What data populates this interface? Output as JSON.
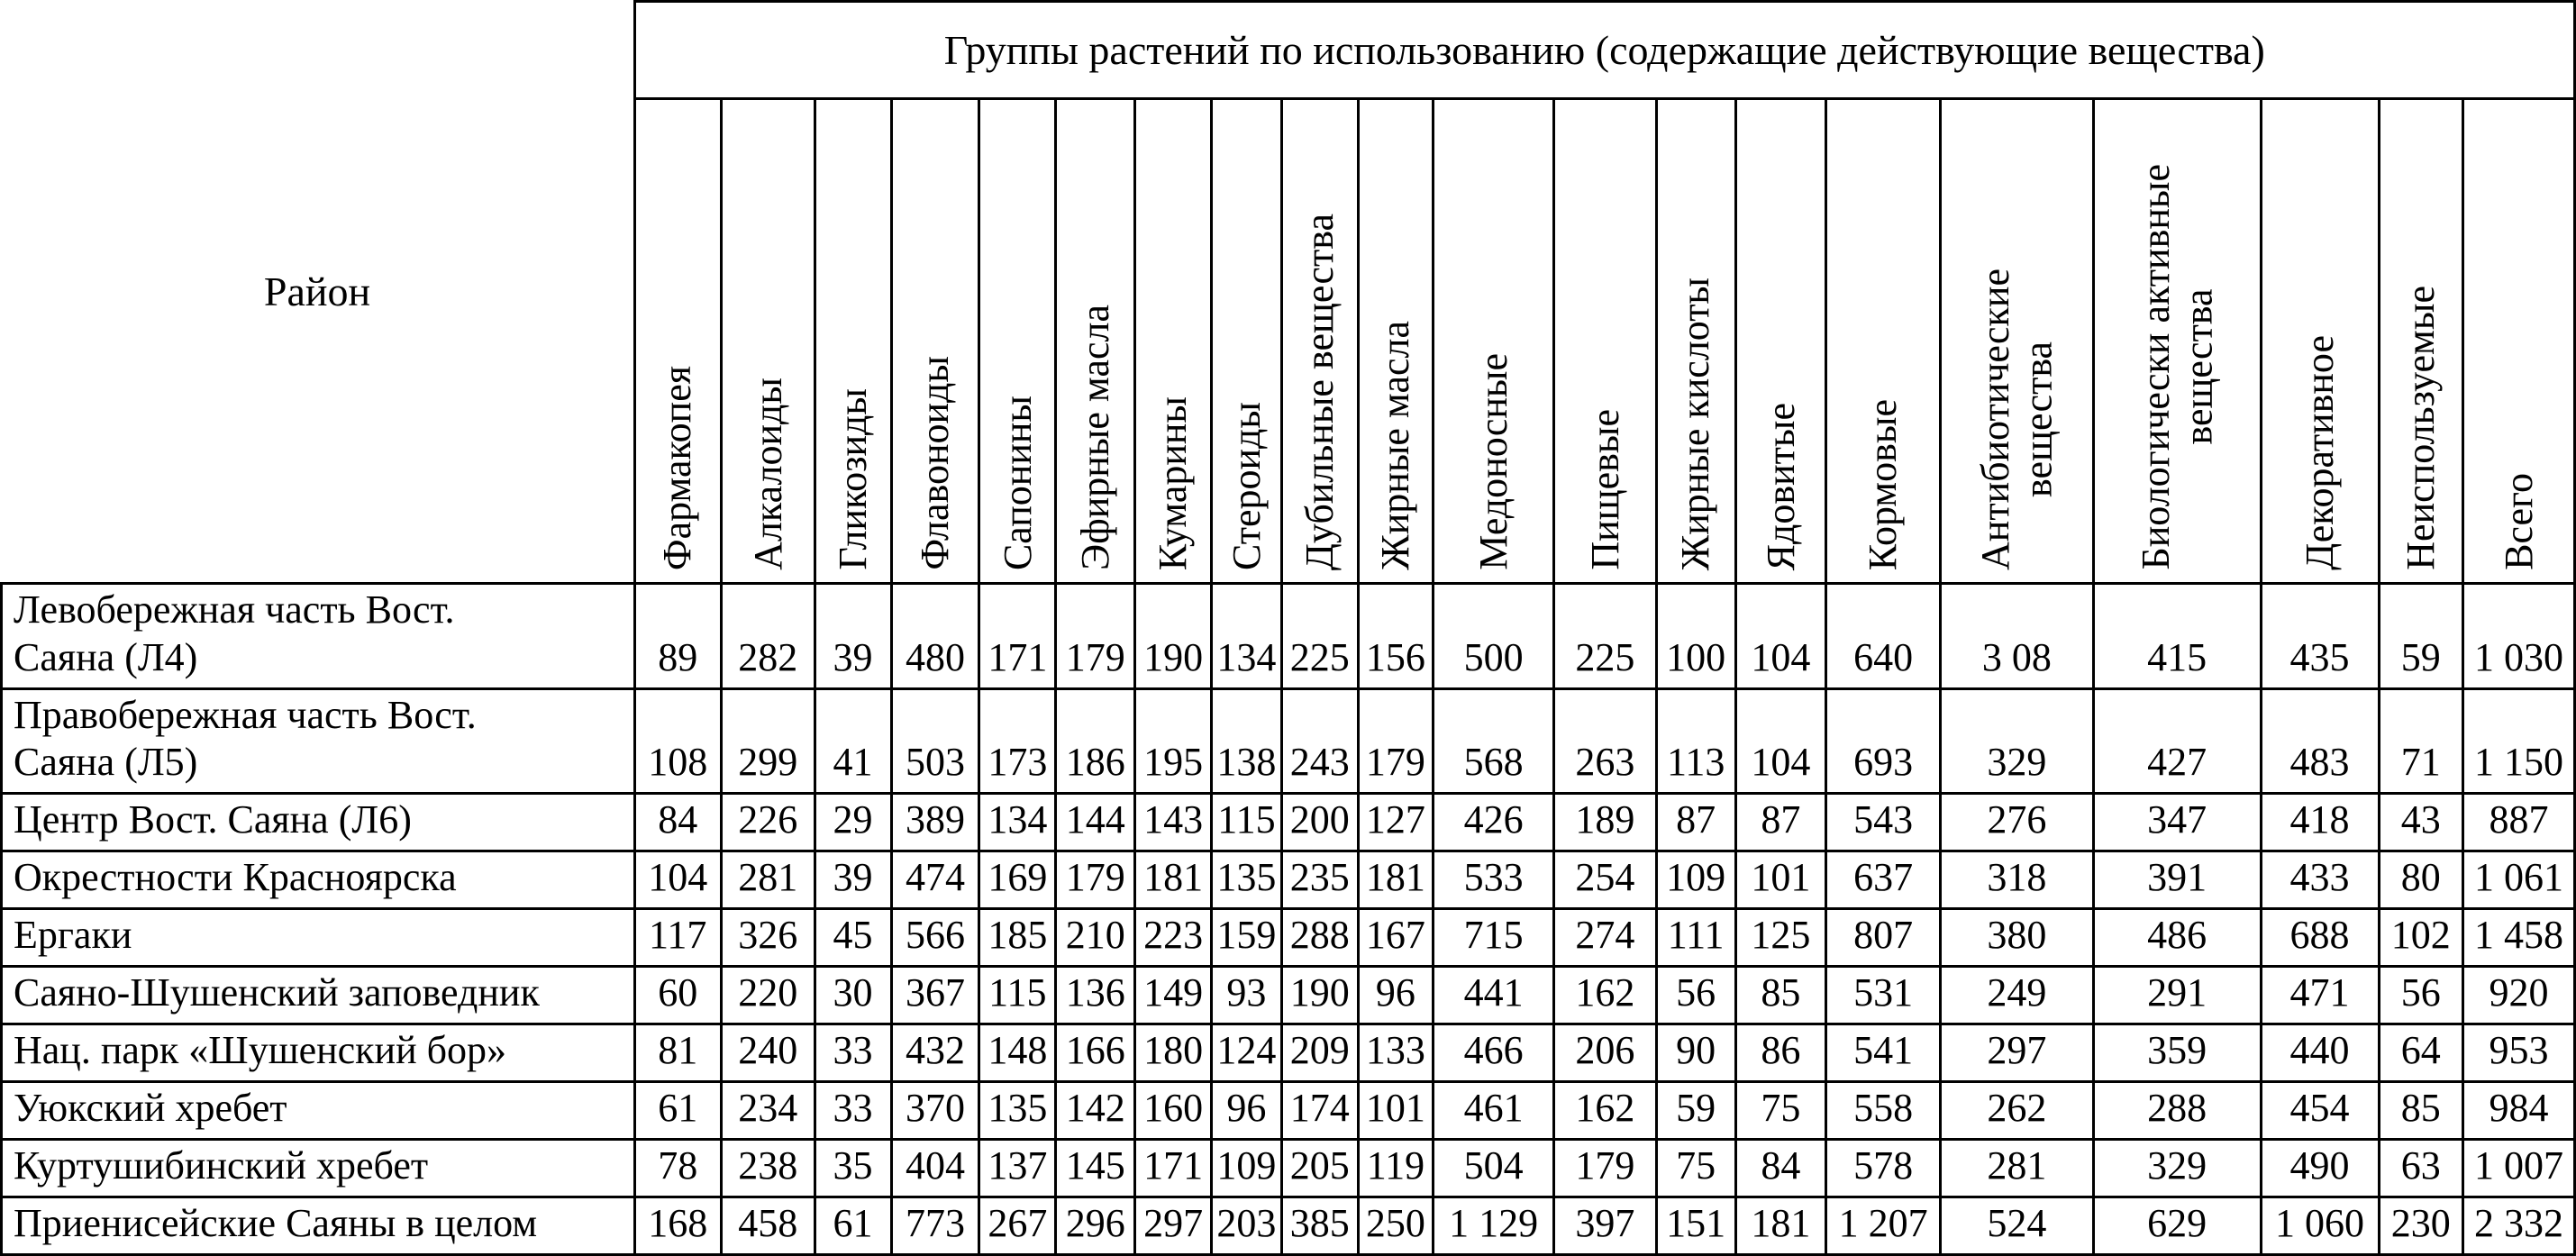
{
  "table": {
    "region_header": "Район",
    "group_header": "Группы растений по использованию (содержащие действующие вещества)",
    "columns": [
      "Фармакопея",
      "Алкалоиды",
      "Гликозиды",
      "Флавоноиды",
      "Сапонины",
      "Эфирные масла",
      "Кумарины",
      "Стероиды",
      "Дубильные вещества",
      "Жирные масла",
      "Медоносные",
      "Пищевые",
      "Жирные кислоты",
      "Ядовитые",
      "Кормовые",
      "Антибиотические\nвещества",
      "Биологически активные\nвещества",
      "Декоративное",
      "Неиспользуемые",
      "Всего"
    ],
    "rows": [
      {
        "region": "Левобережная часть Вост.\nСаяна (Л4)",
        "values": [
          "89",
          "282",
          "39",
          "480",
          "171",
          "179",
          "190",
          "134",
          "225",
          "156",
          "500",
          "225",
          "100",
          "104",
          "640",
          "3 08",
          "415",
          "435",
          "59",
          "1 030"
        ]
      },
      {
        "region": "Правобережная часть Вост.\nСаяна (Л5)",
        "values": [
          "108",
          "299",
          "41",
          "503",
          "173",
          "186",
          "195",
          "138",
          "243",
          "179",
          "568",
          "263",
          "113",
          "104",
          "693",
          "329",
          "427",
          "483",
          "71",
          "1 150"
        ]
      },
      {
        "region": "Центр Вост. Саяна (Л6)",
        "values": [
          "84",
          "226",
          "29",
          "389",
          "134",
          "144",
          "143",
          "115",
          "200",
          "127",
          "426",
          "189",
          "87",
          "87",
          "543",
          "276",
          "347",
          "418",
          "43",
          "887"
        ]
      },
      {
        "region": "Окрестности Красноярска",
        "values": [
          "104",
          "281",
          "39",
          "474",
          "169",
          "179",
          "181",
          "135",
          "235",
          "181",
          "533",
          "254",
          "109",
          "101",
          "637",
          "318",
          "391",
          "433",
          "80",
          "1 061"
        ]
      },
      {
        "region": "Ергаки",
        "values": [
          "117",
          "326",
          "45",
          "566",
          "185",
          "210",
          "223",
          "159",
          "288",
          "167",
          "715",
          "274",
          "111",
          "125",
          "807",
          "380",
          "486",
          "688",
          "102",
          "1 458"
        ]
      },
      {
        "region": "Саяно-Шушенский заповедник",
        "values": [
          "60",
          "220",
          "30",
          "367",
          "115",
          "136",
          "149",
          "93",
          "190",
          "96",
          "441",
          "162",
          "56",
          "85",
          "531",
          "249",
          "291",
          "471",
          "56",
          "920"
        ]
      },
      {
        "region": "Нац. парк «Шушенский бор»",
        "values": [
          "81",
          "240",
          "33",
          "432",
          "148",
          "166",
          "180",
          "124",
          "209",
          "133",
          "466",
          "206",
          "90",
          "86",
          "541",
          "297",
          "359",
          "440",
          "64",
          "953"
        ]
      },
      {
        "region": "Уюкский хребет",
        "values": [
          "61",
          "234",
          "33",
          "370",
          "135",
          "142",
          "160",
          "96",
          "174",
          "101",
          "461",
          "162",
          "59",
          "75",
          "558",
          "262",
          "288",
          "454",
          "85",
          "984"
        ]
      },
      {
        "region": "Куртушибинский хребет",
        "values": [
          "78",
          "238",
          "35",
          "404",
          "137",
          "145",
          "171",
          "109",
          "205",
          "119",
          "504",
          "179",
          "75",
          "84",
          "578",
          "281",
          "329",
          "490",
          "63",
          "1 007"
        ]
      },
      {
        "region": "Приенисейские Саяны в целом",
        "values": [
          "168",
          "458",
          "61",
          "773",
          "267",
          "296",
          "297",
          "203",
          "385",
          "250",
          "1 129",
          "397",
          "151",
          "181",
          "1 207",
          "524",
          "629",
          "1 060",
          "230",
          "2 332"
        ]
      }
    ]
  }
}
